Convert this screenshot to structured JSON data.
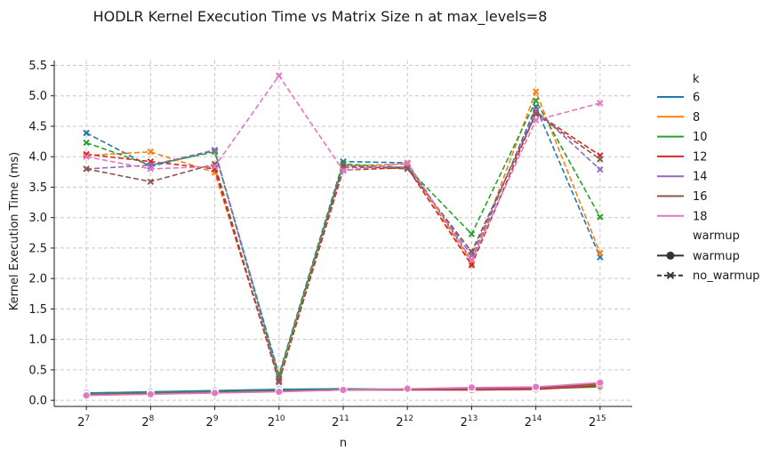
{
  "chart_data": {
    "type": "line",
    "title": "HODLR Kernel Execution Time vs Matrix Size n at max_levels=8",
    "xlabel": "n",
    "ylabel": "Kernel Execution Time (ms)",
    "x_base": "2",
    "x_exponents": [
      "7",
      "8",
      "9",
      "10",
      "11",
      "12",
      "13",
      "14",
      "15"
    ],
    "x_values": [
      128,
      256,
      512,
      1024,
      2048,
      4096,
      8192,
      16384,
      32768
    ],
    "ylim": [
      -0.1,
      5.58
    ],
    "yticks": [
      "0.0",
      "0.5",
      "1.0",
      "1.5",
      "2.0",
      "2.5",
      "3.0",
      "3.5",
      "4.0",
      "4.5",
      "5.0",
      "5.5"
    ],
    "ytick_values": [
      0,
      0.5,
      1.0,
      1.5,
      2.0,
      2.5,
      3.0,
      3.5,
      4.0,
      4.5,
      5.0,
      5.5
    ],
    "grid": true,
    "legend_placement": "outside-right",
    "legend_k_title": "k",
    "legend_warmup_title": "warmup",
    "styles": [
      {
        "label": "warmup",
        "dash": "solid",
        "marker": "circle"
      },
      {
        "label": "no_warmup",
        "dash": "dashed",
        "marker": "x"
      }
    ],
    "series": [
      {
        "k": "6",
        "color": "#1f77b4",
        "warmup": [
          0.12,
          0.14,
          0.16,
          0.18,
          0.19,
          0.18,
          0.18,
          0.19,
          0.25
        ],
        "no_warmup": [
          4.39,
          3.84,
          4.1,
          0.42,
          3.92,
          3.9,
          2.3,
          4.82,
          2.35
        ]
      },
      {
        "k": "8",
        "color": "#ff7f0e",
        "warmup": [
          0.1,
          0.12,
          0.14,
          0.15,
          0.17,
          0.18,
          0.17,
          0.18,
          0.25
        ],
        "no_warmup": [
          4.02,
          4.08,
          3.74,
          0.38,
          3.85,
          3.88,
          2.25,
          5.07,
          2.42
        ]
      },
      {
        "k": "10",
        "color": "#2ca02c",
        "warmup": [
          0.1,
          0.12,
          0.14,
          0.16,
          0.18,
          0.18,
          0.18,
          0.19,
          0.22
        ],
        "no_warmup": [
          4.23,
          3.86,
          4.08,
          0.4,
          3.88,
          3.82,
          2.73,
          4.92,
          3.01
        ]
      },
      {
        "k": "12",
        "color": "#d62728",
        "warmup": [
          0.09,
          0.11,
          0.13,
          0.15,
          0.17,
          0.17,
          0.17,
          0.18,
          0.24
        ],
        "no_warmup": [
          4.04,
          3.92,
          3.8,
          0.31,
          3.78,
          3.82,
          2.22,
          4.72,
          4.02
        ]
      },
      {
        "k": "14",
        "color": "#9467bd",
        "warmup": [
          0.09,
          0.11,
          0.13,
          0.15,
          0.17,
          0.18,
          0.19,
          0.2,
          0.27
        ],
        "no_warmup": [
          3.8,
          3.86,
          4.11,
          0.33,
          3.82,
          3.83,
          2.38,
          4.76,
          3.79
        ]
      },
      {
        "k": "16",
        "color": "#8c564b",
        "warmup": [
          0.09,
          0.11,
          0.13,
          0.15,
          0.17,
          0.18,
          0.2,
          0.21,
          0.27
        ],
        "no_warmup": [
          3.8,
          3.59,
          3.88,
          0.3,
          3.85,
          3.8,
          2.44,
          4.7,
          3.96
        ]
      },
      {
        "k": "18",
        "color": "#e377c2",
        "warmup": [
          0.08,
          0.1,
          0.12,
          0.14,
          0.17,
          0.19,
          0.21,
          0.22,
          0.29
        ],
        "no_warmup": [
          4.0,
          3.8,
          3.84,
          5.33,
          3.77,
          3.9,
          2.3,
          4.6,
          4.88
        ]
      }
    ]
  }
}
